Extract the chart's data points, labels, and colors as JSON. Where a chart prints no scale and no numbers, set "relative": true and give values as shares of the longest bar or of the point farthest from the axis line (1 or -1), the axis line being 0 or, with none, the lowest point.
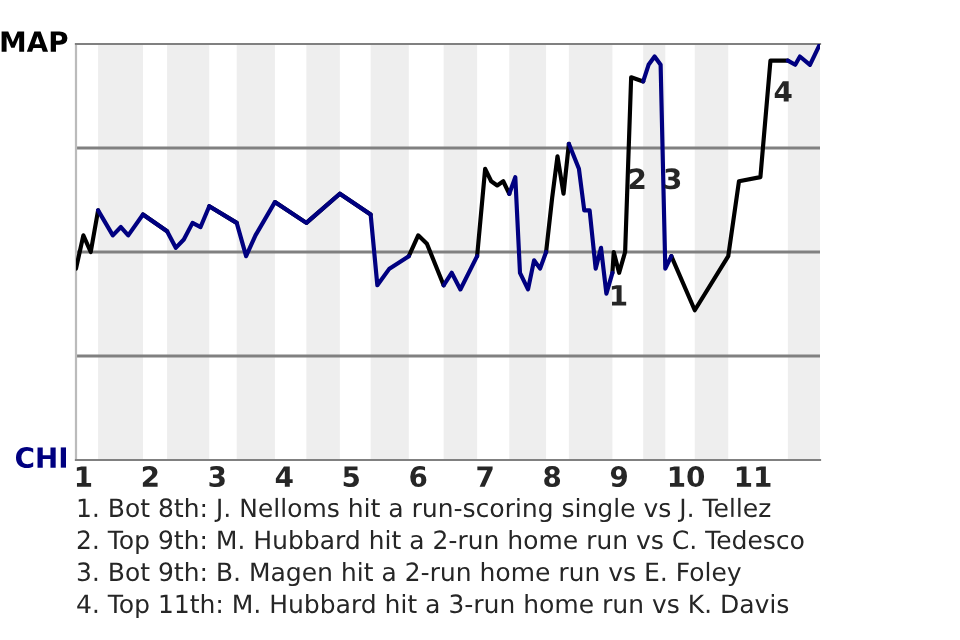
{
  "chart_data": {
    "type": "line",
    "relative": true,
    "x": [
      0.89,
      1.0,
      1.11,
      1.22,
      1.44,
      1.56,
      1.67,
      1.89,
      2.25,
      2.38,
      2.5,
      2.63,
      2.75,
      2.88,
      3.29,
      3.43,
      3.57,
      3.86,
      4.33,
      4.83,
      5.29,
      5.39,
      5.57,
      5.86,
      6.0,
      6.13,
      6.38,
      6.5,
      6.63,
      6.88,
      7.0,
      7.09,
      7.18,
      7.27,
      7.36,
      7.45,
      7.52,
      7.64,
      7.73,
      7.82,
      7.91,
      8.0,
      8.08,
      8.17,
      8.25,
      8.4,
      8.48,
      8.56,
      8.65,
      8.73,
      8.81,
      8.9,
      8.92,
      9.0,
      9.09,
      9.18,
      9.36,
      9.44,
      9.53,
      9.62,
      9.69,
      9.78,
      10.13,
      10.63,
      10.79,
      11.11,
      11.26,
      11.52,
      11.63,
      11.7,
      11.85,
      12.0
    ],
    "series": [
      {
        "name": "MAP",
        "color": "#000000",
        "values": [
          0.46,
          0.54,
          0.5,
          0.6,
          null,
          null,
          null,
          0.59,
          0.55,
          null,
          null,
          null,
          null,
          0.61,
          0.57,
          null,
          null,
          0.62,
          0.57,
          0.64,
          0.59,
          null,
          null,
          0.49,
          0.54,
          0.52,
          0.42,
          null,
          null,
          0.49,
          0.7,
          0.67,
          0.66,
          0.67,
          0.64,
          null,
          null,
          null,
          null,
          null,
          0.5,
          0.63,
          0.73,
          0.64,
          0.76,
          null,
          null,
          null,
          null,
          null,
          null,
          0.45,
          0.5,
          0.45,
          0.5,
          0.92,
          0.91,
          null,
          null,
          null,
          null,
          0.49,
          0.36,
          0.49,
          0.67,
          0.68,
          0.96,
          0.96,
          null,
          null,
          null,
          null
        ]
      },
      {
        "name": "CHI",
        "color": "#000080",
        "values": [
          null,
          null,
          null,
          0.6,
          0.54,
          0.56,
          0.54,
          0.59,
          0.55,
          0.51,
          0.53,
          0.57,
          0.56,
          0.61,
          0.57,
          0.49,
          0.54,
          0.62,
          0.57,
          0.64,
          0.59,
          0.42,
          0.46,
          0.49,
          null,
          null,
          0.42,
          0.45,
          0.41,
          0.49,
          null,
          null,
          null,
          null,
          0.64,
          0.68,
          0.45,
          0.41,
          0.48,
          0.46,
          0.5,
          null,
          null,
          null,
          0.76,
          0.7,
          0.6,
          0.6,
          0.46,
          0.51,
          0.4,
          0.45,
          null,
          null,
          null,
          null,
          0.91,
          0.95,
          0.97,
          0.95,
          0.46,
          0.49,
          null,
          null,
          null,
          null,
          null,
          0.96,
          0.95,
          0.97,
          0.95,
          1.0
        ]
      }
    ],
    "xlim": [
      0.89,
      12.0
    ],
    "xticks": [
      1,
      2,
      3,
      4,
      5,
      6,
      7,
      8,
      9,
      10,
      11
    ],
    "bands": [
      {
        "axis": "x",
        "from": 1.22,
        "to": 1.89,
        "color": "#eeeeee"
      },
      {
        "axis": "x",
        "from": 2.25,
        "to": 2.88,
        "color": "#eeeeee"
      },
      {
        "axis": "x",
        "from": 3.29,
        "to": 3.86,
        "color": "#eeeeee"
      },
      {
        "axis": "x",
        "from": 4.33,
        "to": 4.83,
        "color": "#eeeeee"
      },
      {
        "axis": "x",
        "from": 5.29,
        "to": 5.86,
        "color": "#eeeeee"
      },
      {
        "axis": "x",
        "from": 6.38,
        "to": 6.88,
        "color": "#eeeeee"
      },
      {
        "axis": "x",
        "from": 7.36,
        "to": 7.91,
        "color": "#eeeeee"
      },
      {
        "axis": "x",
        "from": 8.25,
        "to": 8.9,
        "color": "#eeeeee"
      },
      {
        "axis": "x",
        "from": 9.36,
        "to": 9.69,
        "color": "#eeeeee"
      },
      {
        "axis": "x",
        "from": 10.13,
        "to": 10.63,
        "color": "#eeeeee"
      },
      {
        "axis": "x",
        "from": 11.52,
        "to": 12.0,
        "color": "#eeeeee"
      }
    ],
    "ref_lines": [
      {
        "axis": "y",
        "value": 0.25,
        "color": "#808080"
      },
      {
        "axis": "y",
        "value": 0.5,
        "color": "#808080"
      },
      {
        "axis": "y",
        "value": 0.75,
        "color": "#808080"
      }
    ],
    "annotations": [
      {
        "text": "1",
        "x": 8.99,
        "y": 0.39
      },
      {
        "text": "2",
        "x": 9.27,
        "y": 0.67
      },
      {
        "text": "3",
        "x": 9.8,
        "y": 0.67
      },
      {
        "text": "4",
        "x": 11.45,
        "y": 0.88
      },
      "1. Bot 8th: J. Nelloms hit a run-scoring single vs J. Tellez",
      "2. Top 9th: M. Hubbard hit a 2-run home run vs C. Tedesco",
      "3. Bot 9th: B. Magen hit a 2-run home run vs E. Foley",
      "4. Top 11th: M. Hubbard hit a 3-run home run vs K. Davis"
    ],
    "line_style": "solid",
    "marker": "none",
    "legend": false,
    "grid": false
  }
}
